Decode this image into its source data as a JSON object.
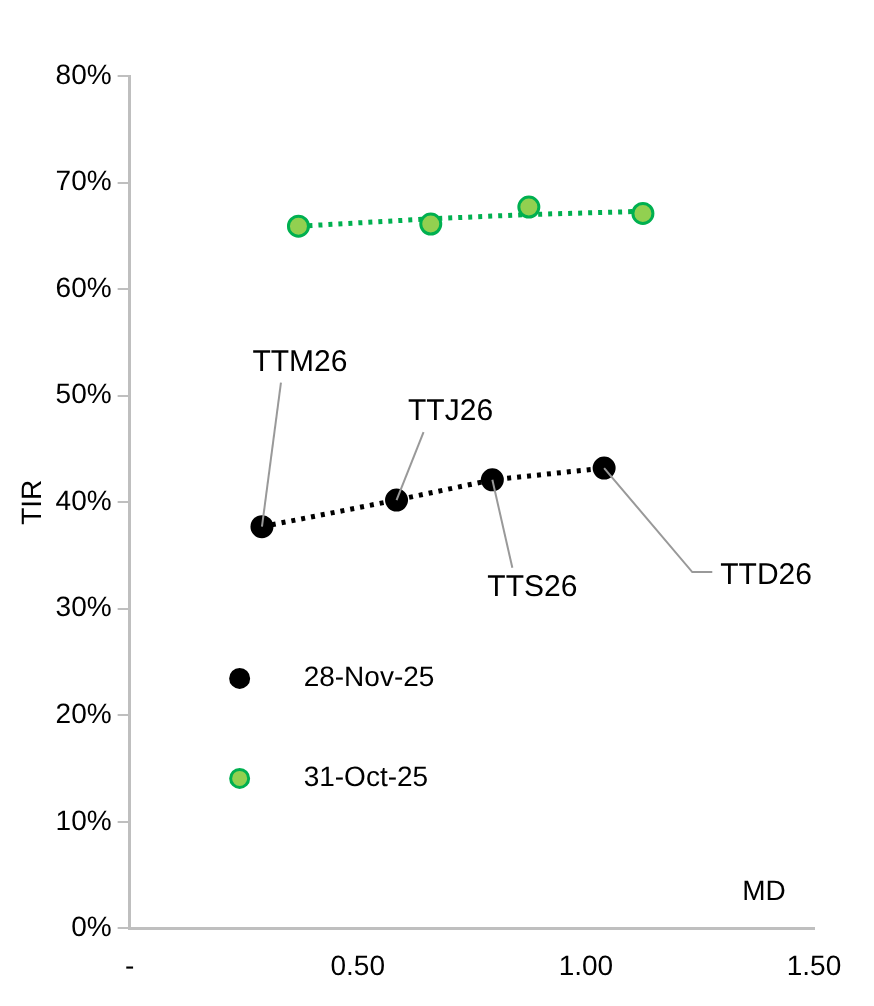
{
  "chart_data": {
    "type": "scatter",
    "xlabel": "MD",
    "ylabel": "TIR",
    "xlim": [
      0,
      1.5
    ],
    "xticks": [
      {
        "value": 0,
        "label": "-"
      },
      {
        "value": 0.5,
        "label": "0.50"
      },
      {
        "value": 1,
        "label": "1.00"
      },
      {
        "value": 1.5,
        "label": "1.50"
      }
    ],
    "ylim": [
      0,
      80
    ],
    "yticks": [
      {
        "value": 0,
        "label": "0%"
      },
      {
        "value": 10,
        "label": "10%"
      },
      {
        "value": 20,
        "label": "20%"
      },
      {
        "value": 30,
        "label": "30%"
      },
      {
        "value": 40,
        "label": "40%"
      },
      {
        "value": 50,
        "label": "50%"
      },
      {
        "value": 60,
        "label": "60%"
      },
      {
        "value": 70,
        "label": "70%"
      },
      {
        "value": 80,
        "label": "80%"
      }
    ],
    "grid": false,
    "legend": "bottom left",
    "marker": "circle",
    "series": [
      {
        "name": "28-Nov-25",
        "type": "line",
        "line_style": "dotted",
        "color": "#000000",
        "x": [
          0.29,
          0.585,
          0.795,
          1.04
        ],
        "values": [
          37.7,
          40.2,
          42.1,
          43.2
        ]
      },
      {
        "name": "31-Oct-25",
        "color": "#92d050",
        "x": [
          0.37,
          0.66,
          0.875,
          1.125
        ],
        "values": [
          65.9,
          66.1,
          67.7,
          67.1
        ]
      },
      {
        "type": "line",
        "line_style": "dotted",
        "marker": "none",
        "color": "#00b050",
        "x": [
          0.37,
          0.66,
          0.875,
          1.125
        ],
        "values": [
          65.9,
          66.6,
          67.0,
          67.3
        ]
      }
    ],
    "annotations": [
      {
        "text": "TTM26",
        "x": 0.29,
        "y": 37.7
      },
      {
        "text": "TTJ26",
        "x": 0.585,
        "y": 40.2
      },
      {
        "text": "TTS26",
        "x": 0.795,
        "y": 42.1
      },
      {
        "text": "TTD26",
        "x": 1.04,
        "y": 43.2
      }
    ]
  }
}
